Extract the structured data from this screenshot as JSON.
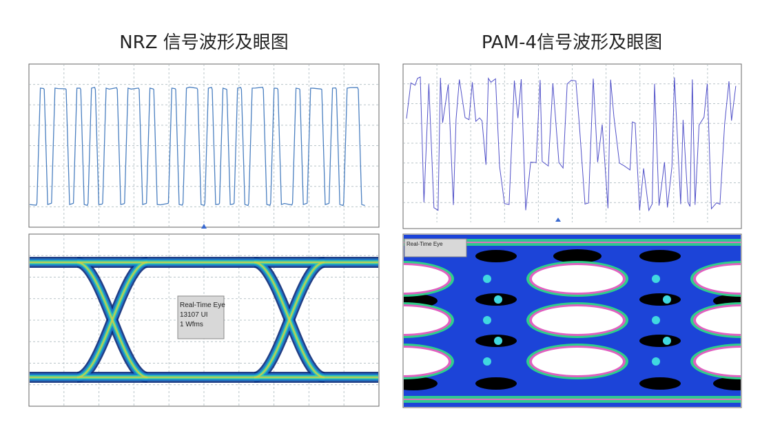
{
  "left": {
    "title": "NRZ 信号波形及眼图",
    "eye_label": [
      "Real-Time Eye",
      "13107 UI",
      "1 Wfms"
    ]
  },
  "right": {
    "title": "PAM-4信号波形及眼图",
    "eye_label": [
      "Real-Time Eye"
    ]
  }
}
